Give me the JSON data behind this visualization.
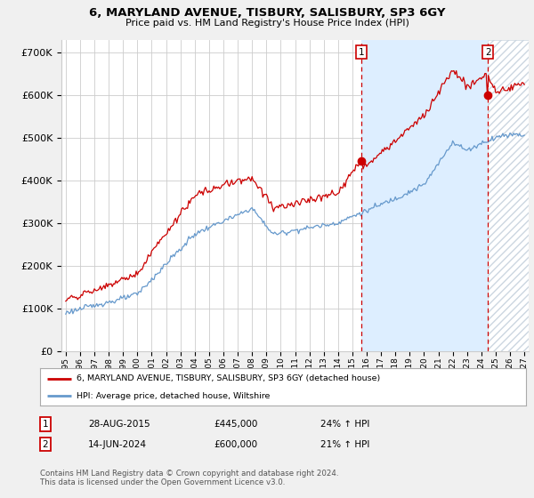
{
  "title": "6, MARYLAND AVENUE, TISBURY, SALISBURY, SP3 6GY",
  "subtitle": "Price paid vs. HM Land Registry's House Price Index (HPI)",
  "legend_label_red": "6, MARYLAND AVENUE, TISBURY, SALISBURY, SP3 6GY (detached house)",
  "legend_label_blue": "HPI: Average price, detached house, Wiltshire",
  "transaction1_date": "28-AUG-2015",
  "transaction1_price": "£445,000",
  "transaction1_hpi": "24% ↑ HPI",
  "transaction2_date": "14-JUN-2024",
  "transaction2_price": "£600,000",
  "transaction2_hpi": "21% ↑ HPI",
  "footnote": "Contains HM Land Registry data © Crown copyright and database right 2024.\nThis data is licensed under the Open Government Licence v3.0.",
  "ylim": [
    0,
    730000
  ],
  "yticks": [
    0,
    100000,
    200000,
    300000,
    400000,
    500000,
    600000,
    700000
  ],
  "background_color": "#f0f0f0",
  "plot_bg_color": "#ffffff",
  "fill_color": "#ddeeff",
  "red_color": "#cc0000",
  "blue_color": "#6699cc",
  "marker1_x": 2015.65,
  "marker1_y": 445000,
  "marker2_x": 2024.45,
  "marker2_y": 600000,
  "vline1_x": 2015.65,
  "vline2_x": 2024.45,
  "xmin": 1995,
  "xmax": 2027
}
